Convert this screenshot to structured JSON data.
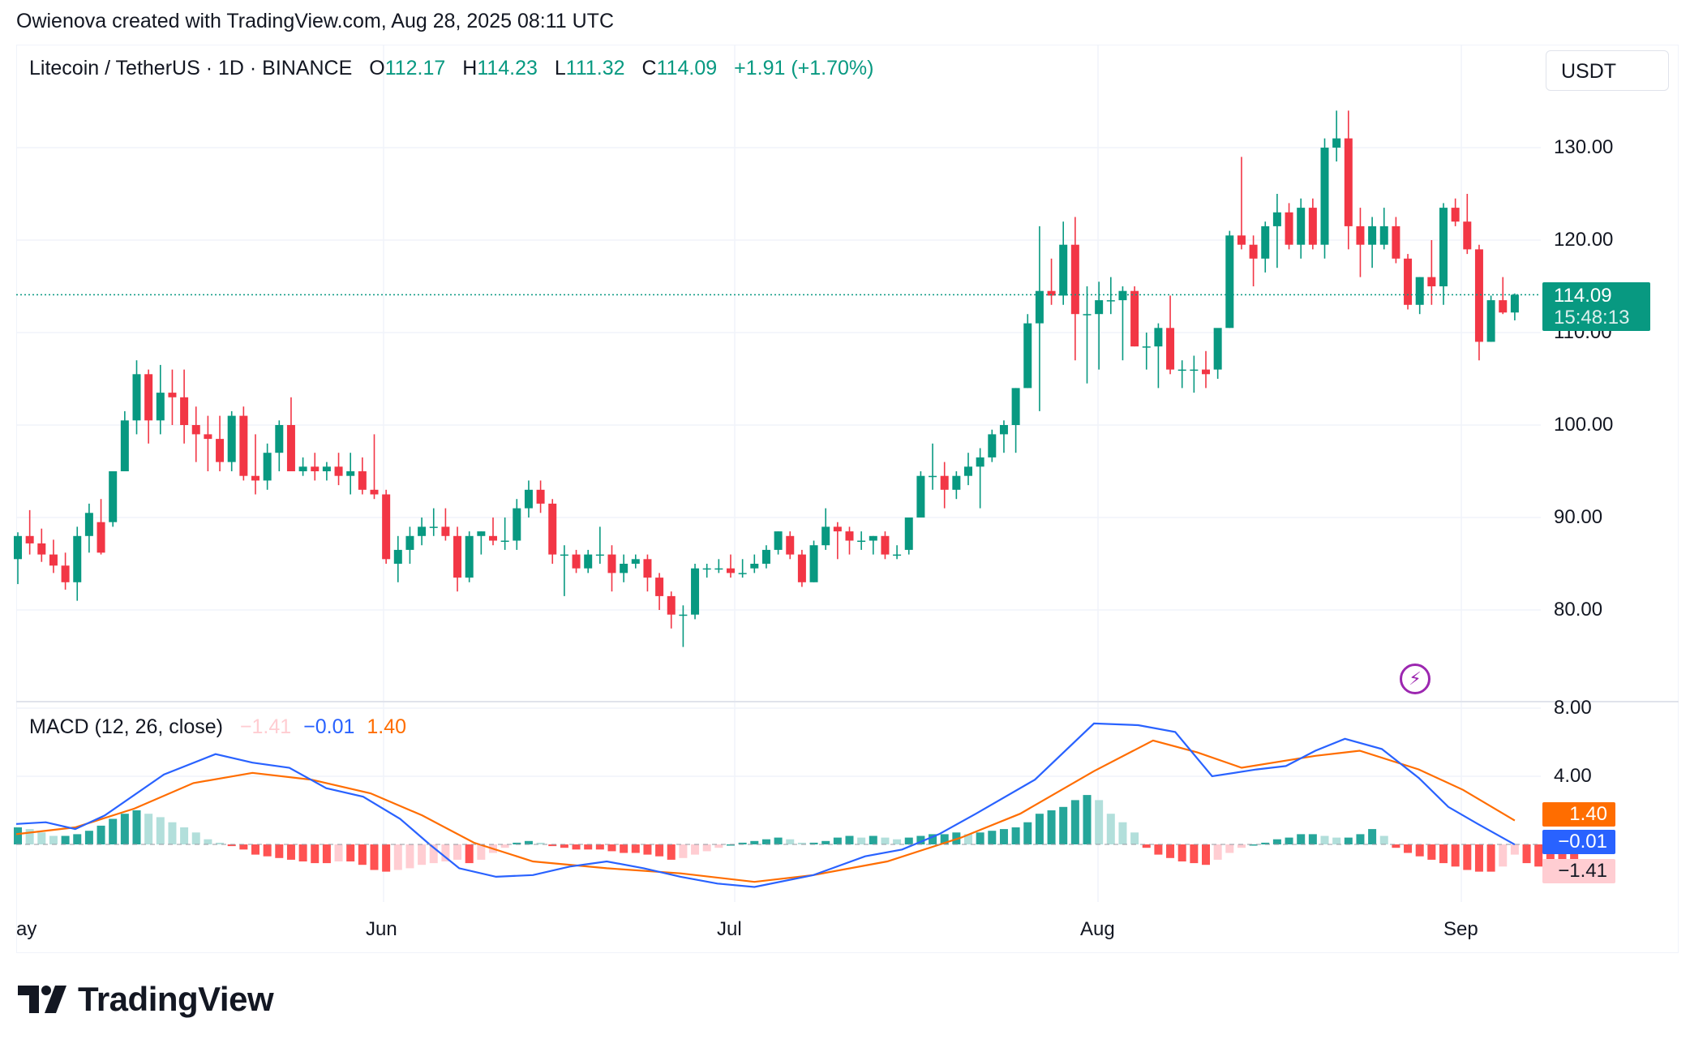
{
  "header": {
    "attribution": "Owienova created with TradingView.com, Aug 28, 2025 08:11 UTC"
  },
  "symbol": {
    "name": "Litecoin / TetherUS · 1D · BINANCE",
    "o_label": "O",
    "o_value": "112.17",
    "h_label": "H",
    "h_value": "114.23",
    "l_label": "L",
    "l_value": "111.32",
    "c_label": "C",
    "c_value": "114.09",
    "change": "+1.91 (+1.70%)"
  },
  "currency_unit": "USDT",
  "price_tag": {
    "price": "114.09",
    "countdown": "15:48:13"
  },
  "macd_legend": {
    "label": "MACD (12, 26, close)",
    "histogram": "−1.41",
    "macd": "−0.01",
    "signal": "1.40"
  },
  "macd_tags": {
    "signal": "1.40",
    "macd": "−0.01",
    "histogram": "−1.41"
  },
  "brand": {
    "name": "TradingView"
  },
  "colors": {
    "up": "#089981",
    "down": "#f23645",
    "macd_line": "#2962ff",
    "signal_line": "#ff6d00",
    "hist_up_strong": "#26a69a",
    "hist_up_weak": "#b2dfdb",
    "hist_down_strong": "#ff5252",
    "hist_down_weak": "#ffcdd2"
  },
  "chart_data": [
    {
      "type": "candlestick",
      "title": "Litecoin / TetherUS · 1D · BINANCE",
      "y_axis_ticks": [
        "130.00",
        "120.00",
        "110.00",
        "100.00",
        "90.00",
        "80.00"
      ],
      "x_axis_ticks": [
        "ay",
        "Jun",
        "Jul",
        "Aug",
        "Sep"
      ],
      "ylim": [
        76,
        140
      ],
      "last_price": 114.09,
      "candles_ohlc": [
        [
          85.5,
          88.4,
          82.8,
          88.0
        ],
        [
          88.0,
          90.8,
          86.0,
          87.2
        ],
        [
          87.2,
          88.8,
          85.2,
          86.0
        ],
        [
          86.0,
          87.6,
          84.0,
          84.8
        ],
        [
          84.8,
          86.2,
          82.2,
          83.0
        ],
        [
          83.0,
          89.0,
          81.0,
          88.0
        ],
        [
          88.0,
          91.5,
          86.2,
          90.5
        ],
        [
          89.5,
          92.0,
          86.0,
          86.2
        ],
        [
          89.5,
          95.0,
          89.0,
          95.0
        ],
        [
          95.0,
          101.5,
          95.0,
          100.5
        ],
        [
          100.5,
          107.0,
          99.0,
          105.5
        ],
        [
          105.5,
          106.0,
          98.0,
          100.5
        ],
        [
          100.5,
          106.5,
          99.0,
          103.5
        ],
        [
          103.5,
          106.0,
          100.0,
          103.0
        ],
        [
          103.0,
          106.0,
          98.0,
          100.0
        ],
        [
          100.0,
          102.0,
          96.0,
          99.0
        ],
        [
          99.0,
          101.0,
          95.0,
          98.5
        ],
        [
          98.5,
          101.0,
          95.0,
          96.0
        ],
        [
          96.0,
          101.5,
          95.0,
          101.0
        ],
        [
          101.0,
          102.0,
          94.0,
          94.5
        ],
        [
          94.5,
          99.0,
          92.5,
          94.0
        ],
        [
          94.0,
          98.0,
          93.0,
          97.0
        ],
        [
          97.0,
          100.5,
          95.0,
          100.0
        ],
        [
          100.0,
          103.0,
          96.0,
          95.0
        ],
        [
          95.0,
          96.5,
          94.5,
          95.5
        ],
        [
          95.5,
          97.0,
          94.0,
          95.0
        ],
        [
          95.0,
          96.0,
          94.0,
          95.5
        ],
        [
          95.5,
          97.0,
          93.5,
          94.5
        ],
        [
          94.5,
          97.0,
          92.5,
          95.0
        ],
        [
          95.0,
          96.5,
          92.5,
          93.0
        ],
        [
          93.0,
          99.0,
          92.0,
          92.5
        ],
        [
          92.5,
          93.0,
          85.0,
          85.5
        ],
        [
          85.0,
          88.0,
          83.0,
          86.5
        ],
        [
          86.5,
          89.0,
          85.0,
          88.0
        ],
        [
          88.0,
          90.0,
          87.0,
          89.0
        ],
        [
          89.0,
          91.0,
          88.0,
          89.0
        ],
        [
          89.0,
          91.0,
          87.5,
          88.0
        ],
        [
          88.0,
          89.0,
          82.0,
          83.5
        ],
        [
          83.5,
          88.5,
          83.0,
          88.0
        ],
        [
          88.0,
          88.5,
          86.0,
          88.5
        ],
        [
          88.0,
          90.0,
          87.0,
          87.5
        ],
        [
          87.5,
          90.0,
          86.5,
          87.5
        ],
        [
          87.5,
          92.0,
          86.5,
          91.0
        ],
        [
          91.0,
          94.0,
          90.0,
          93.0
        ],
        [
          93.0,
          94.0,
          90.5,
          91.5
        ],
        [
          91.5,
          92.0,
          85.0,
          86.0
        ],
        [
          86.0,
          87.0,
          81.5,
          86.0
        ],
        [
          86.0,
          86.5,
          84.0,
          84.5
        ],
        [
          84.5,
          86.5,
          84.0,
          86.0
        ],
        [
          86.0,
          89.0,
          85.0,
          86.0
        ],
        [
          86.0,
          87.0,
          82.0,
          84.0
        ],
        [
          84.0,
          86.0,
          83.0,
          85.0
        ],
        [
          85.0,
          86.0,
          84.5,
          85.5
        ],
        [
          85.5,
          86.0,
          82.0,
          83.5
        ],
        [
          83.5,
          84.0,
          80.0,
          81.5
        ],
        [
          81.5,
          82.0,
          78.0,
          79.5
        ],
        [
          79.5,
          80.5,
          76.0,
          79.5
        ],
        [
          79.5,
          85.0,
          79.0,
          84.5
        ],
        [
          84.5,
          85.0,
          83.5,
          84.5
        ],
        [
          84.5,
          85.5,
          84.0,
          84.5
        ],
        [
          84.5,
          86.0,
          83.5,
          84.0
        ],
        [
          84.0,
          85.5,
          83.5,
          84.0
        ],
        [
          84.5,
          86.0,
          84.0,
          85.0
        ],
        [
          85.0,
          87.0,
          84.5,
          86.5
        ],
        [
          86.5,
          88.5,
          86.0,
          88.5
        ],
        [
          88.0,
          88.5,
          85.5,
          86.0
        ],
        [
          86.0,
          86.5,
          82.5,
          83.0
        ],
        [
          83.0,
          87.5,
          83.0,
          87.0
        ],
        [
          87.0,
          91.0,
          86.5,
          89.0
        ],
        [
          89.0,
          89.5,
          85.5,
          88.5
        ],
        [
          88.5,
          89.0,
          86.0,
          87.5
        ],
        [
          87.5,
          88.5,
          86.5,
          87.5
        ],
        [
          87.5,
          88.0,
          86.0,
          88.0
        ],
        [
          88.0,
          88.5,
          85.5,
          86.0
        ],
        [
          86.0,
          87.0,
          85.5,
          86.0
        ],
        [
          86.5,
          90.0,
          86.0,
          90.0
        ],
        [
          90.0,
          95.0,
          90.0,
          94.5
        ],
        [
          94.5,
          98.0,
          93.0,
          94.5
        ],
        [
          94.5,
          96.0,
          91.0,
          93.0
        ],
        [
          93.0,
          95.0,
          92.0,
          94.5
        ],
        [
          94.5,
          97.0,
          93.5,
          95.5
        ],
        [
          95.5,
          97.5,
          91.0,
          96.5
        ],
        [
          96.5,
          99.5,
          96.0,
          99.0
        ],
        [
          99.0,
          100.5,
          97.0,
          100.0
        ],
        [
          100.0,
          104.0,
          97.0,
          104.0
        ],
        [
          104.0,
          112.0,
          104.0,
          111.0
        ],
        [
          111.0,
          121.5,
          101.5,
          114.5
        ],
        [
          114.5,
          118.0,
          113.0,
          114.0
        ],
        [
          114.0,
          122.0,
          113.0,
          119.5
        ],
        [
          119.5,
          122.5,
          107.0,
          112.0
        ],
        [
          112.0,
          115.0,
          104.5,
          112.0
        ],
        [
          112.0,
          115.5,
          106.0,
          113.5
        ],
        [
          113.5,
          116.0,
          112.0,
          113.5
        ],
        [
          113.5,
          115.0,
          107.0,
          114.5
        ],
        [
          114.5,
          115.0,
          108.5,
          108.5
        ],
        [
          108.5,
          110.0,
          106.0,
          108.5
        ],
        [
          108.5,
          111.0,
          104.0,
          110.5
        ],
        [
          110.5,
          114.0,
          105.5,
          106.0
        ],
        [
          106.0,
          107.0,
          104.0,
          106.0
        ],
        [
          106.0,
          107.5,
          103.5,
          106.0
        ],
        [
          106.0,
          108.0,
          104.0,
          105.5
        ],
        [
          106.0,
          110.0,
          105.0,
          110.5
        ],
        [
          110.5,
          121.0,
          110.5,
          120.5
        ],
        [
          120.5,
          129.0,
          119.0,
          119.5
        ],
        [
          119.5,
          120.5,
          115.0,
          118.0
        ],
        [
          118.0,
          122.0,
          116.5,
          121.5
        ],
        [
          121.5,
          125.0,
          117.0,
          123.0
        ],
        [
          123.0,
          124.0,
          119.0,
          119.5
        ],
        [
          119.5,
          124.5,
          118.0,
          123.5
        ],
        [
          123.5,
          124.5,
          119.0,
          119.5
        ],
        [
          119.5,
          131.0,
          118.0,
          130.0
        ],
        [
          130.0,
          134.0,
          128.5,
          131.0
        ],
        [
          131.0,
          134.0,
          119.0,
          121.5
        ],
        [
          121.5,
          123.5,
          116.0,
          119.5
        ],
        [
          119.5,
          122.5,
          117.0,
          121.5
        ],
        [
          119.5,
          123.5,
          119.0,
          121.5
        ],
        [
          121.5,
          122.5,
          117.5,
          118.0
        ],
        [
          118.0,
          118.5,
          112.5,
          113.0
        ],
        [
          113.0,
          116.0,
          112.0,
          116.0
        ],
        [
          116.0,
          120.0,
          113.0,
          115.0
        ],
        [
          115.0,
          124.0,
          113.0,
          123.5
        ],
        [
          123.5,
          124.5,
          121.5,
          122.0
        ],
        [
          122.0,
          125.0,
          118.5,
          119.0
        ],
        [
          119.0,
          119.5,
          107.0,
          109.0
        ],
        [
          109.0,
          114.0,
          109.0,
          113.5
        ],
        [
          113.5,
          116.0,
          112.0,
          112.17
        ],
        [
          112.17,
          114.23,
          111.32,
          114.09
        ]
      ]
    },
    {
      "type": "macd",
      "title": "MACD (12, 26, close)",
      "y_axis_ticks": [
        "8.00",
        "4.00"
      ],
      "ylim": [
        -3.5,
        8.0
      ],
      "last_values": {
        "histogram": -1.41,
        "macd": -0.01,
        "signal": 1.4
      },
      "macd_points": [
        [
          0,
          1.2
        ],
        [
          0.04,
          1.3
        ],
        [
          0.08,
          0.9
        ],
        [
          0.12,
          1.7
        ],
        [
          0.2,
          4.1
        ],
        [
          0.27,
          5.3
        ],
        [
          0.32,
          4.8
        ],
        [
          0.37,
          4.5
        ],
        [
          0.42,
          3.3
        ],
        [
          0.47,
          2.8
        ],
        [
          0.52,
          1.5
        ],
        [
          0.56,
          0
        ],
        [
          0.6,
          -1.4
        ],
        [
          0.65,
          -1.9
        ],
        [
          0.7,
          -1.8
        ],
        [
          0.75,
          -1.3
        ],
        [
          0.8,
          -1.0
        ],
        [
          0.85,
          -1.4
        ],
        [
          0.9,
          -1.9
        ],
        [
          0.95,
          -2.3
        ],
        [
          1.0,
          -2.5
        ],
        [
          1.08,
          -1.8
        ],
        [
          1.15,
          -0.7
        ],
        [
          1.2,
          -0.3
        ],
        [
          1.25,
          0.6
        ],
        [
          1.3,
          1.8
        ],
        [
          1.38,
          3.8
        ],
        [
          1.46,
          7.1
        ],
        [
          1.52,
          7.0
        ],
        [
          1.57,
          6.6
        ],
        [
          1.62,
          4.0
        ],
        [
          1.68,
          4.4
        ],
        [
          1.72,
          4.6
        ],
        [
          1.76,
          5.5
        ],
        [
          1.8,
          6.2
        ],
        [
          1.85,
          5.6
        ],
        [
          1.9,
          3.9
        ],
        [
          1.94,
          2.2
        ],
        [
          1.98,
          1.2
        ],
        [
          2.03,
          -0.01
        ]
      ],
      "signal_points": [
        [
          0,
          0.6
        ],
        [
          0.08,
          1.0
        ],
        [
          0.16,
          2.1
        ],
        [
          0.24,
          3.6
        ],
        [
          0.32,
          4.2
        ],
        [
          0.4,
          3.8
        ],
        [
          0.48,
          3.0
        ],
        [
          0.55,
          1.7
        ],
        [
          0.62,
          0.1
        ],
        [
          0.7,
          -1.0
        ],
        [
          0.8,
          -1.4
        ],
        [
          0.9,
          -1.7
        ],
        [
          1.0,
          -2.2
        ],
        [
          1.08,
          -1.8
        ],
        [
          1.18,
          -1.0
        ],
        [
          1.28,
          0.4
        ],
        [
          1.36,
          1.8
        ],
        [
          1.46,
          4.3
        ],
        [
          1.54,
          6.1
        ],
        [
          1.6,
          5.4
        ],
        [
          1.66,
          4.5
        ],
        [
          1.76,
          5.2
        ],
        [
          1.82,
          5.5
        ],
        [
          1.9,
          4.4
        ],
        [
          1.96,
          3.2
        ],
        [
          2.03,
          1.4
        ]
      ],
      "histogram": [
        1.0,
        0.9,
        0.7,
        0.5,
        0.5,
        0.6,
        0.8,
        1.1,
        1.5,
        1.8,
        2.0,
        1.8,
        1.6,
        1.3,
        1.0,
        0.7,
        0.3,
        0.1,
        -0.1,
        -0.3,
        -0.6,
        -0.7,
        -0.8,
        -0.9,
        -1.0,
        -1.1,
        -1.1,
        -1.0,
        -1.0,
        -1.2,
        -1.5,
        -1.6,
        -1.5,
        -1.4,
        -1.2,
        -1.1,
        -1.0,
        -0.9,
        -1.1,
        -0.9,
        -0.5,
        -0.2,
        0.1,
        0.2,
        0.1,
        -0.1,
        -0.2,
        -0.3,
        -0.3,
        -0.3,
        -0.4,
        -0.5,
        -0.5,
        -0.6,
        -0.7,
        -0.9,
        -0.8,
        -0.6,
        -0.4,
        -0.2,
        0.0,
        0.1,
        0.2,
        0.3,
        0.4,
        0.3,
        0.1,
        0.1,
        0.2,
        0.4,
        0.5,
        0.4,
        0.5,
        0.4,
        0.3,
        0.4,
        0.5,
        0.6,
        0.6,
        0.7,
        0.6,
        0.7,
        0.8,
        0.9,
        1.0,
        1.3,
        1.8,
        2.0,
        2.2,
        2.6,
        2.9,
        2.6,
        1.8,
        1.3,
        0.7,
        -0.2,
        -0.6,
        -0.8,
        -1.0,
        -1.1,
        -1.2,
        -0.9,
        -0.5,
        -0.2,
        0.0,
        0.1,
        0.3,
        0.4,
        0.6,
        0.6,
        0.5,
        0.4,
        0.4,
        0.6,
        0.9,
        0.5,
        -0.2,
        -0.5,
        -0.7,
        -0.9,
        -1.1,
        -1.3,
        -1.5,
        -1.6,
        -1.6,
        -1.3,
        -0.6,
        -1.1,
        -1.3,
        -1.4,
        -1.41,
        -1.41
      ]
    }
  ]
}
